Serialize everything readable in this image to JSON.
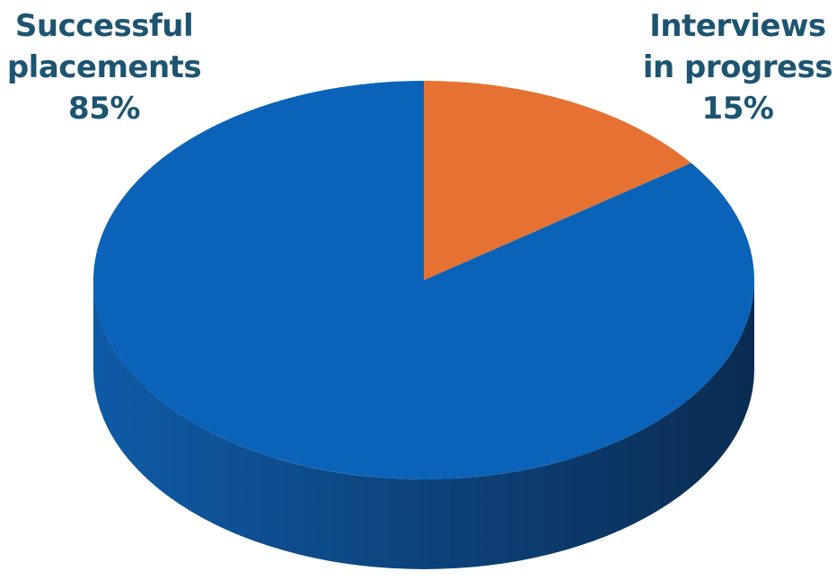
{
  "chart_data": {
    "type": "pie",
    "style": "3d",
    "title": "",
    "slices": [
      {
        "label_lines": [
          "Successful",
          "placements"
        ],
        "percent_label": "85%",
        "value": 85,
        "color": "#0a63b8"
      },
      {
        "label_lines": [
          "Interviews",
          "in progress"
        ],
        "percent_label": "15%",
        "value": 15,
        "color": "#e57232"
      }
    ],
    "label_color": "#1d5470",
    "side_color_light": "#0f5aa6",
    "side_color_dark": "#0a2c52"
  }
}
